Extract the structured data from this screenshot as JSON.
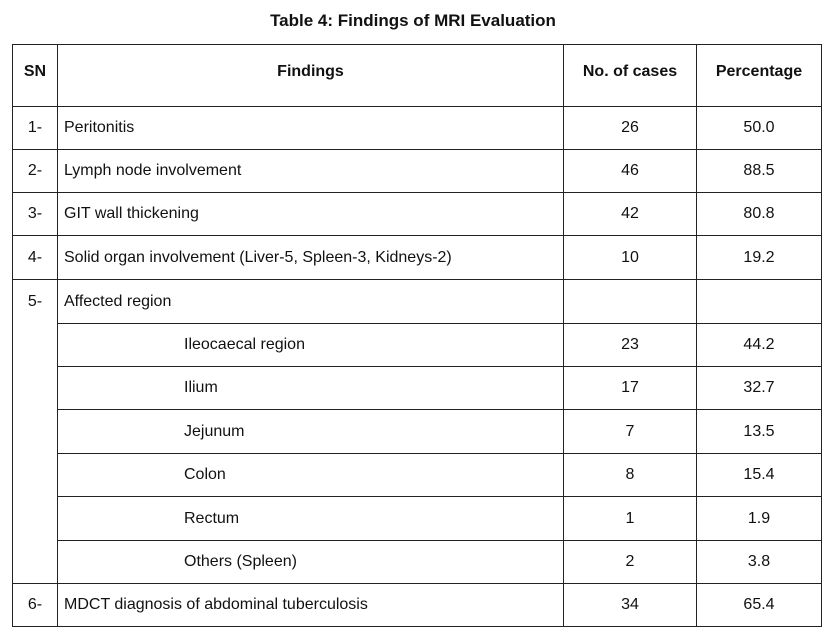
{
  "caption": "Table 4: Findings of MRI Evaluation",
  "headers": {
    "sn": "SN",
    "findings": "Findings",
    "cases": "No. of cases",
    "percentage": "Percentage"
  },
  "rows": [
    {
      "sn": "1-",
      "finding": "Peritonitis",
      "cases": "26",
      "pct": "50.0"
    },
    {
      "sn": "2-",
      "finding": "Lymph node involvement",
      "cases": "46",
      "pct": "88.5"
    },
    {
      "sn": "3-",
      "finding": "GIT wall thickening",
      "cases": "42",
      "pct": "80.8"
    },
    {
      "sn": "4-",
      "finding": "Solid organ involvement (Liver-5, Spleen-3, Kidneys-2)",
      "cases": "10",
      "pct": "19.2"
    },
    {
      "sn": "5-",
      "finding": "Affected region",
      "cases": "",
      "pct": ""
    },
    {
      "sn": "6-",
      "finding": "MDCT diagnosis of abdominal tuberculosis",
      "cases": "34",
      "pct": "65.4"
    }
  ],
  "subrows": [
    {
      "finding": "Ileocaecal region",
      "cases": "23",
      "pct": "44.2"
    },
    {
      "finding": "Ilium",
      "cases": "17",
      "pct": "32.7"
    },
    {
      "finding": "Jejunum",
      "cases": "7",
      "pct": "13.5"
    },
    {
      "finding": "Colon",
      "cases": "8",
      "pct": "15.4"
    },
    {
      "finding": "Rectum",
      "cases": "1",
      "pct": "1.9"
    },
    {
      "finding": "Others (Spleen)",
      "cases": "2",
      "pct": "3.8"
    }
  ]
}
